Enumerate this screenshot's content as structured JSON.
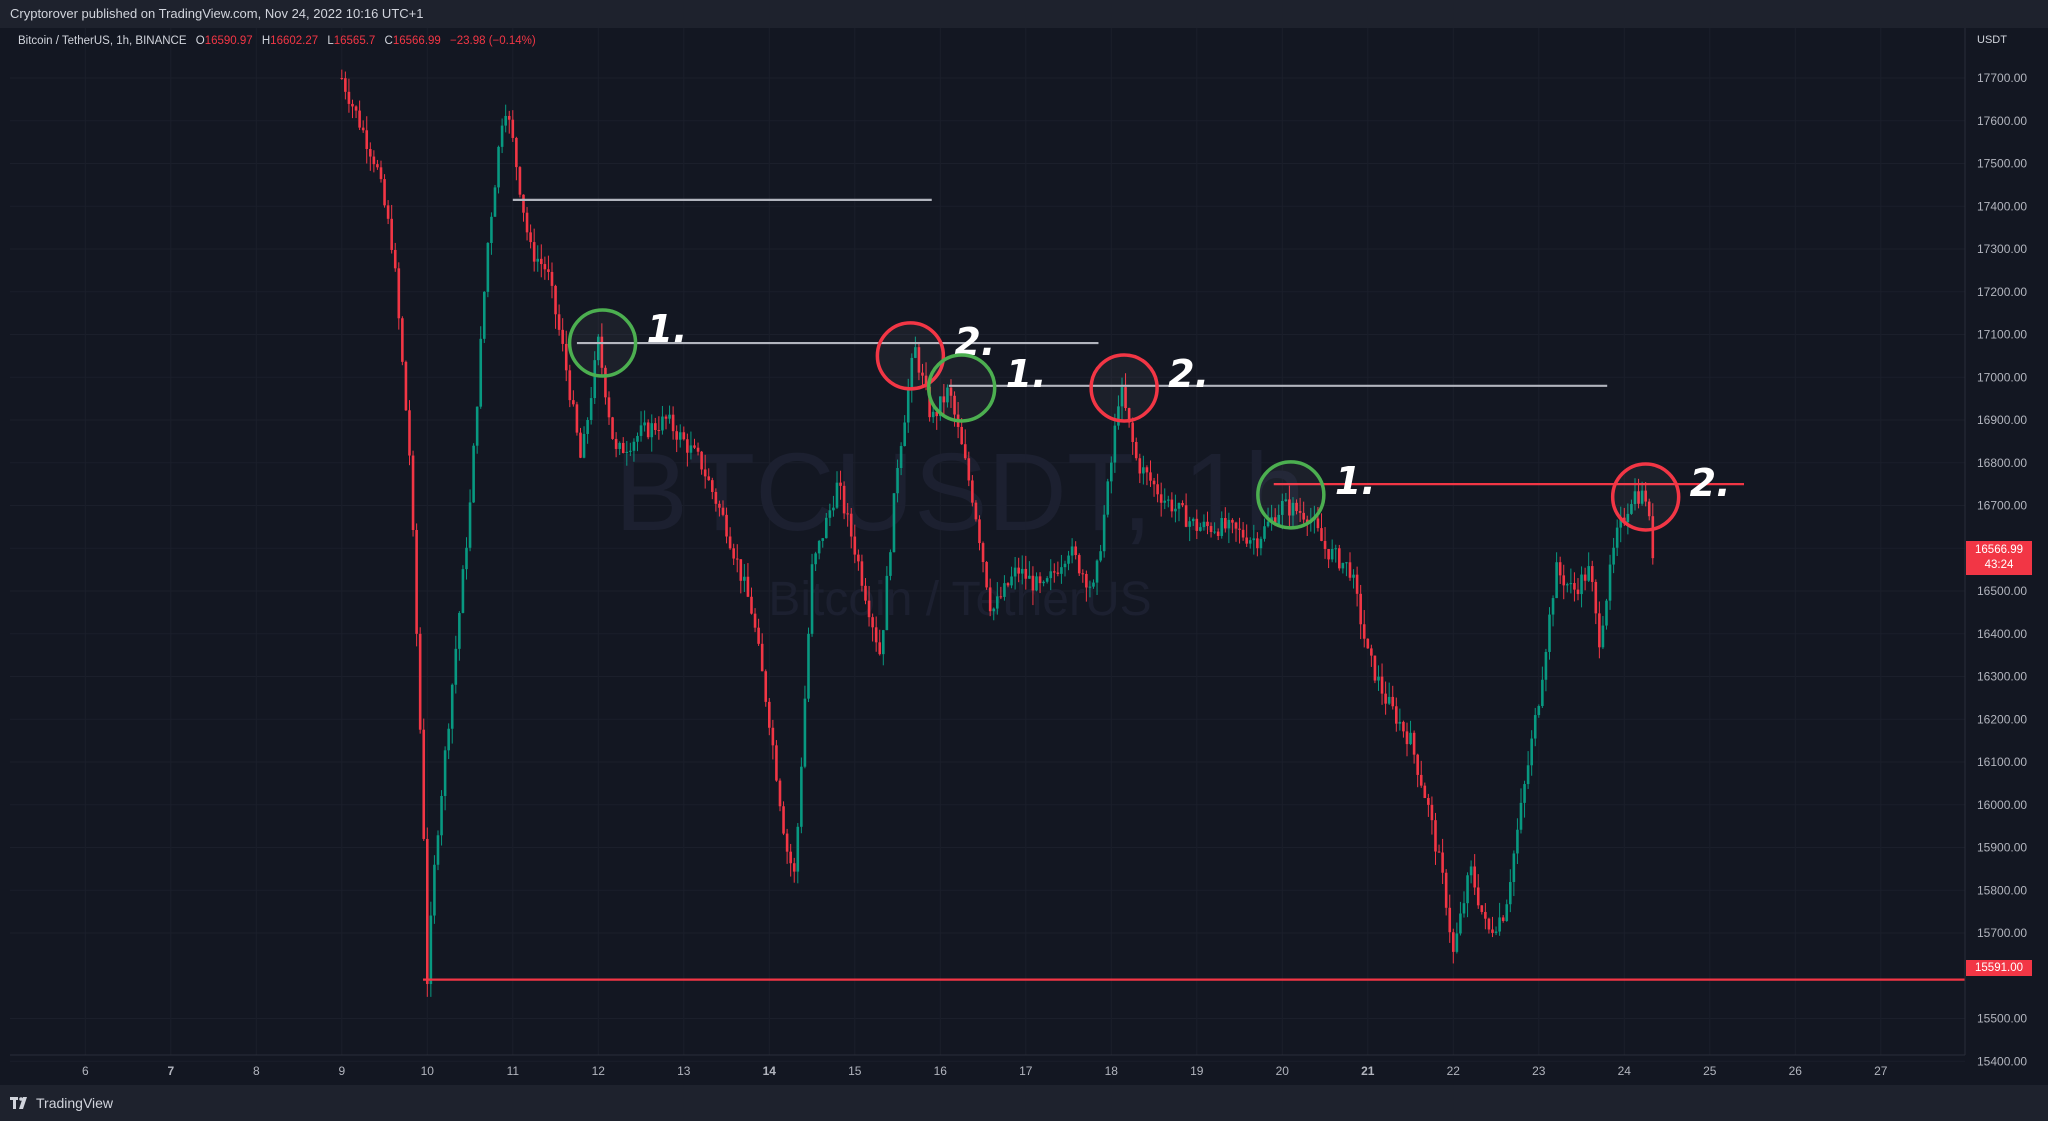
{
  "publisher_line": "Cryptorover published on TradingView.com, Nov 24, 2022 10:16 UTC+1",
  "legend": {
    "symbol": "Bitcoin / TetherUS, 1h, BINANCE",
    "open_label": "O",
    "open": "16590.97",
    "high_label": "H",
    "high": "16602.27",
    "low_label": "L",
    "low": "16565.7",
    "close_label": "C",
    "close": "16566.99",
    "change": "−23.98 (−0.14%)"
  },
  "watermark": {
    "symbol": "BTCUSDT, 1h",
    "name": "Bitcoin / TetherUS"
  },
  "currency": "USDT",
  "last_price": {
    "price": "16566.99",
    "countdown": "43:24"
  },
  "support_tag": "15591.00",
  "logo_text": "TradingView",
  "colors": {
    "background": "#131722",
    "up_candle": "#089981",
    "down_candle": "#f23645",
    "circle_green": "#4caf50",
    "circle_red": "#f23645",
    "level_white": "#b2b5be",
    "level_red": "#f23645"
  },
  "chart_data": {
    "type": "candlestick",
    "timeframe": "1h",
    "symbol": "BTCUSDT",
    "exchange": "BINANCE",
    "x_tick_labels": [
      "6",
      "7",
      "8",
      "9",
      "10",
      "11",
      "12",
      "13",
      "14",
      "15",
      "16",
      "17",
      "18",
      "19",
      "20",
      "21",
      "22",
      "23",
      "24",
      "25",
      "26",
      "27"
    ],
    "bold_x_ticks": [
      "7",
      "14",
      "21"
    ],
    "y_tick_labels": [
      "17700.00",
      "17600.00",
      "17500.00",
      "17400.00",
      "17300.00",
      "17200.00",
      "17100.00",
      "17000.00",
      "16900.00",
      "16800.00",
      "16700.00",
      "16600.00",
      "16500.00",
      "16400.00",
      "16300.00",
      "16200.00",
      "16100.00",
      "16000.00",
      "15900.00",
      "15800.00",
      "15700.00",
      "15500.00",
      "15400.00"
    ],
    "ylim": [
      15370,
      17920
    ],
    "price_path": [
      [
        9.0,
        17700
      ],
      [
        9.4,
        17500
      ],
      [
        9.6,
        17300
      ],
      [
        9.8,
        16800
      ],
      [
        9.95,
        16000
      ],
      [
        10.0,
        15591
      ],
      [
        10.1,
        15900
      ],
      [
        10.3,
        16300
      ],
      [
        10.5,
        16700
      ],
      [
        10.7,
        17300
      ],
      [
        10.9,
        17650
      ],
      [
        11.0,
        17550
      ],
      [
        11.2,
        17300
      ],
      [
        11.4,
        17250
      ],
      [
        11.6,
        17050
      ],
      [
        11.8,
        16800
      ],
      [
        12.0,
        17080
      ],
      [
        12.2,
        16820
      ],
      [
        12.5,
        16870
      ],
      [
        12.8,
        16900
      ],
      [
        13.2,
        16800
      ],
      [
        13.5,
        16650
      ],
      [
        13.8,
        16450
      ],
      [
        14.0,
        16200
      ],
      [
        14.2,
        15900
      ],
      [
        14.3,
        15830
      ],
      [
        14.5,
        16550
      ],
      [
        14.8,
        16750
      ],
      [
        15.0,
        16600
      ],
      [
        15.3,
        16350
      ],
      [
        15.5,
        16800
      ],
      [
        15.7,
        17070
      ],
      [
        15.9,
        16900
      ],
      [
        16.1,
        16970
      ],
      [
        16.4,
        16700
      ],
      [
        16.6,
        16450
      ],
      [
        16.9,
        16550
      ],
      [
        17.2,
        16500
      ],
      [
        17.5,
        16600
      ],
      [
        17.8,
        16500
      ],
      [
        18.0,
        16800
      ],
      [
        18.1,
        16980
      ],
      [
        18.3,
        16800
      ],
      [
        18.6,
        16720
      ],
      [
        19.0,
        16650
      ],
      [
        19.3,
        16650
      ],
      [
        19.7,
        16620
      ],
      [
        20.0,
        16700
      ],
      [
        20.3,
        16680
      ],
      [
        20.5,
        16600
      ],
      [
        20.8,
        16550
      ],
      [
        21.0,
        16350
      ],
      [
        21.2,
        16250
      ],
      [
        21.5,
        16150
      ],
      [
        21.7,
        16000
      ],
      [
        21.9,
        15800
      ],
      [
        22.0,
        15650
      ],
      [
        22.2,
        15850
      ],
      [
        22.4,
        15700
      ],
      [
        22.6,
        15750
      ],
      [
        22.8,
        16000
      ],
      [
        23.0,
        16250
      ],
      [
        23.2,
        16550
      ],
      [
        23.4,
        16500
      ],
      [
        23.6,
        16550
      ],
      [
        23.7,
        16380
      ],
      [
        23.9,
        16620
      ],
      [
        24.1,
        16730
      ],
      [
        24.25,
        16720
      ],
      [
        24.35,
        16567
      ]
    ],
    "levels": [
      {
        "price": 17415,
        "from_day": 11.0,
        "to_day": 15.9,
        "color": "white"
      },
      {
        "price": 17080,
        "from_day": 11.75,
        "to_day": 17.85,
        "color": "white"
      },
      {
        "price": 16980,
        "from_day": 16.1,
        "to_day": 23.8,
        "color": "white"
      },
      {
        "price": 16750,
        "from_day": 19.9,
        "to_day": 25.4,
        "color": "red"
      },
      {
        "price": 15591,
        "from_day": 9.95,
        "to_day": 28.0,
        "color": "red"
      }
    ],
    "annotations": [
      {
        "day": 12.05,
        "price": 17080,
        "color": "green",
        "label": "1."
      },
      {
        "day": 15.65,
        "price": 17050,
        "color": "red",
        "label": "2."
      },
      {
        "day": 16.25,
        "price": 16975,
        "color": "green",
        "label": "1."
      },
      {
        "day": 18.15,
        "price": 16975,
        "color": "red",
        "label": "2."
      },
      {
        "day": 20.1,
        "price": 16725,
        "color": "green",
        "label": "1."
      },
      {
        "day": 24.25,
        "price": 16720,
        "color": "red",
        "label": "2."
      }
    ]
  }
}
